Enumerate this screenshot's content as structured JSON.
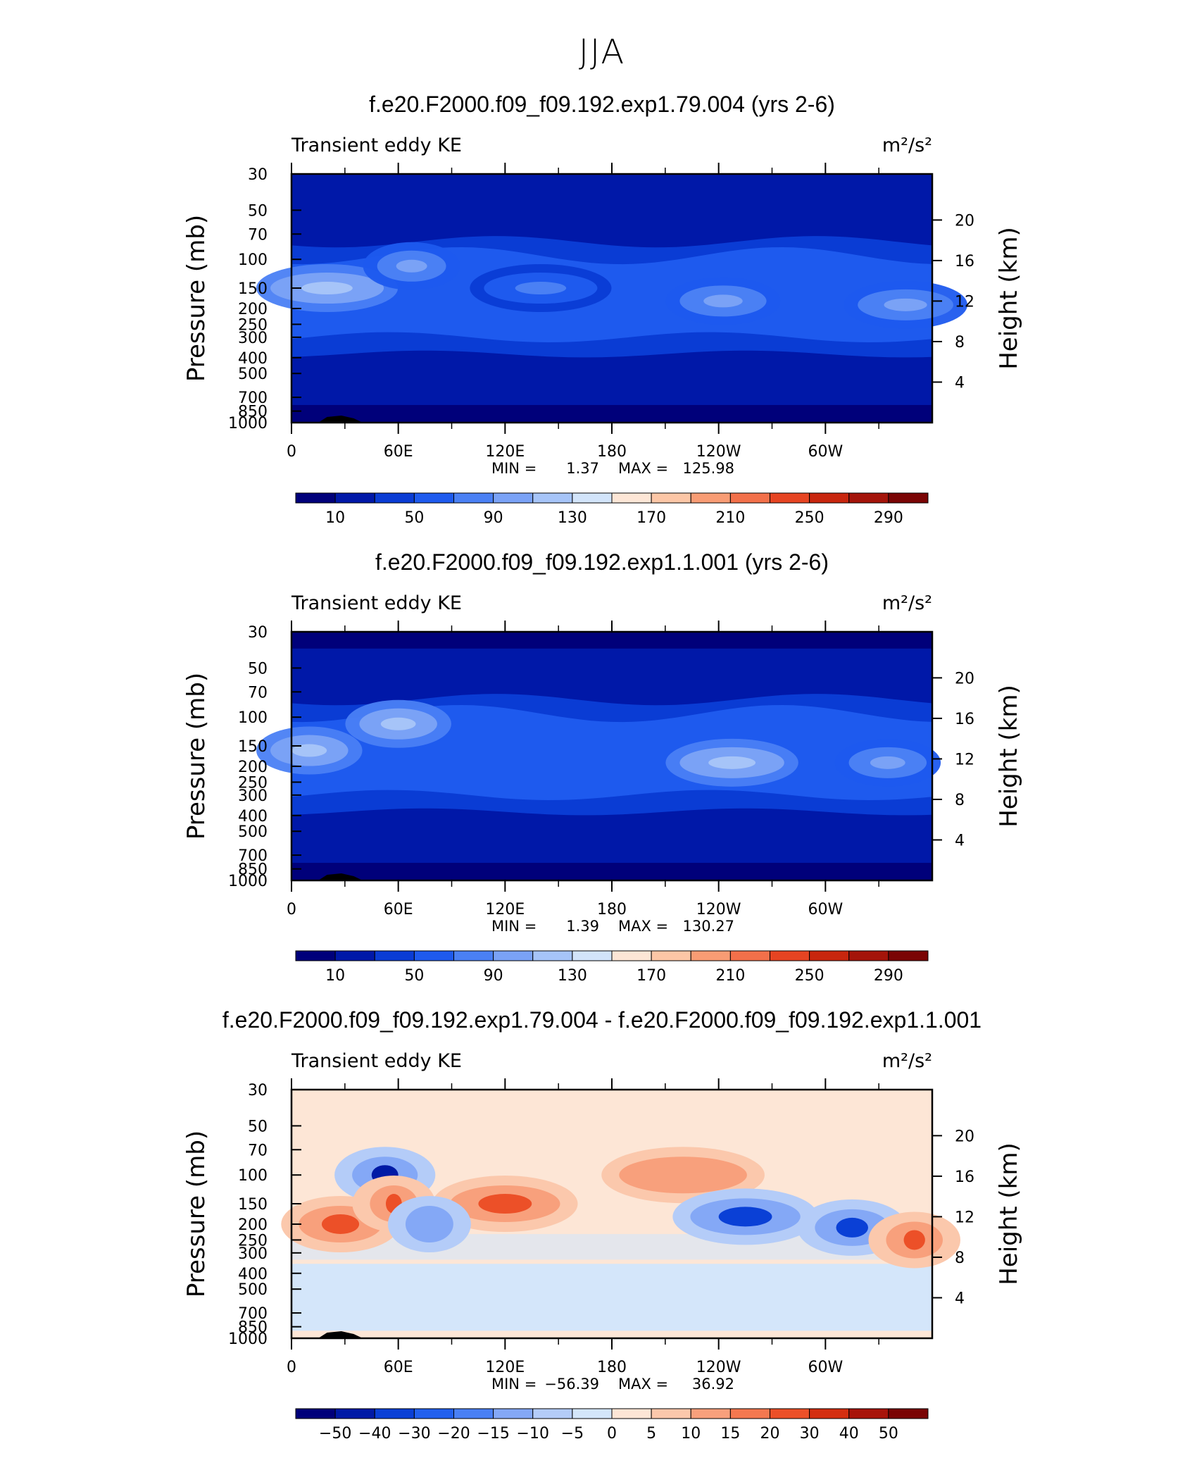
{
  "title": "JJA",
  "panels": [
    {
      "title": "f.e20.F2000.f09_f09.192.exp1.79.004 (yrs 2-6)",
      "left_label": "Transient eddy KE",
      "units": "m²/s²",
      "stats": {
        "min_label": "MIN =",
        "min": "1.37",
        "max_label": "MAX =",
        "max": "125.98"
      },
      "colorbar_labels": [
        "10",
        "50",
        "90",
        "130",
        "170",
        "210",
        "250",
        "290"
      ]
    },
    {
      "title": "f.e20.F2000.f09_f09.192.exp1.1.001 (yrs 2-6)",
      "left_label": "Transient eddy KE",
      "units": "m²/s²",
      "stats": {
        "min_label": "MIN =",
        "min": "1.39",
        "max_label": "MAX =",
        "max": "130.27"
      },
      "colorbar_labels": [
        "10",
        "50",
        "90",
        "130",
        "170",
        "210",
        "250",
        "290"
      ]
    },
    {
      "title": "f.e20.F2000.f09_f09.192.exp1.79.004 - f.e20.F2000.f09_f09.192.exp1.1.001",
      "left_label": "Transient eddy KE",
      "units": "m²/s²",
      "stats": {
        "min_label": "MIN =",
        "min": "−56.39",
        "max_label": "MAX =",
        "max": "36.92"
      },
      "colorbar_labels": [
        "−50",
        "−40",
        "−30",
        "−20",
        "−15",
        "−10",
        "−5",
        "0",
        "5",
        "10",
        "15",
        "20",
        "30",
        "40",
        "50"
      ]
    }
  ],
  "axes": {
    "ylabel": "Pressure (mb)",
    "y2label": "Height (km)",
    "pressure_ticks": [
      "30",
      "50",
      "70",
      "100",
      "150",
      "200",
      "250",
      "300",
      "400",
      "500",
      "700",
      "850",
      "1000"
    ],
    "height_ticks": [
      "20",
      "16",
      "12",
      "8",
      "4"
    ],
    "x_ticks": [
      "0",
      "60E",
      "120E",
      "180",
      "120W",
      "60W"
    ]
  },
  "colors": {
    "abs_scale": [
      "#00007a",
      "#0018a8",
      "#0a3cd4",
      "#1e5aee",
      "#4a80f4",
      "#7aa2f6",
      "#a6c4f8",
      "#d2e4fa",
      "#fde6d6",
      "#fcc6a6",
      "#f89c74",
      "#f2704a",
      "#e64422",
      "#c8260e",
      "#a4140a",
      "#7a0404"
    ],
    "diff_scale": [
      "#00007a",
      "#001aa6",
      "#0a40d6",
      "#2260ee",
      "#4a80f4",
      "#84a8f6",
      "#b4ccf8",
      "#d4e6fa",
      "#fde6d6",
      "#fbc8ac",
      "#f8a07c",
      "#f47850",
      "#ec5028",
      "#d42e10",
      "#a8140a",
      "#7a0404"
    ]
  },
  "chart_data": [
    {
      "type": "heatmap",
      "title": "f.e20.F2000.f09_f09.192.exp1.79.004 (yrs 2-6)",
      "xlabel": "",
      "ylabel": "Pressure (mb)",
      "x": [
        "0",
        "60E",
        "120E",
        "180",
        "120W",
        "60W"
      ],
      "y_pressure_mb": [
        30,
        50,
        70,
        100,
        150,
        200,
        250,
        300,
        400,
        500,
        700,
        850,
        1000
      ],
      "z_min": 1.37,
      "z_max": 125.98,
      "levels": [
        10,
        30,
        50,
        70,
        90,
        110,
        130,
        150,
        170,
        190,
        210,
        230,
        250,
        270,
        290
      ],
      "regions": [
        {
          "lon_range": [
            0,
            40
          ],
          "pressure_mb": 150,
          "value": 90
        },
        {
          "lon_range": [
            60,
            75
          ],
          "pressure_mb": 110,
          "value": 70
        },
        {
          "lon_range": [
            120,
            160
          ],
          "pressure_mb": 150,
          "value": 50
        },
        {
          "lon_range": [
            230,
            255
          ],
          "pressure_mb": 180,
          "value": 70
        },
        {
          "lon_range": [
            330,
            360
          ],
          "pressure_mb": 190,
          "value": 70
        }
      ]
    },
    {
      "type": "heatmap",
      "title": "f.e20.F2000.f09_f09.192.exp1.1.001 (yrs 2-6)",
      "xlabel": "",
      "ylabel": "Pressure (mb)",
      "x": [
        "0",
        "60E",
        "120E",
        "180",
        "120W",
        "60W"
      ],
      "y_pressure_mb": [
        30,
        50,
        70,
        100,
        150,
        200,
        250,
        300,
        400,
        500,
        700,
        850,
        1000
      ],
      "z_min": 1.39,
      "z_max": 130.27,
      "levels": [
        10,
        30,
        50,
        70,
        90,
        110,
        130,
        150,
        170,
        190,
        210,
        230,
        250,
        270,
        290
      ],
      "regions": [
        {
          "lon_range": [
            0,
            20
          ],
          "pressure_mb": 160,
          "value": 90
        },
        {
          "lon_range": [
            50,
            70
          ],
          "pressure_mb": 110,
          "value": 90
        },
        {
          "lon_range": [
            230,
            265
          ],
          "pressure_mb": 190,
          "value": 90
        },
        {
          "lon_range": [
            325,
            345
          ],
          "pressure_mb": 190,
          "value": 70
        }
      ]
    },
    {
      "type": "heatmap",
      "title": "f.e20.F2000.f09_f09.192.exp1.79.004 - f.e20.F2000.f09_f09.192.exp1.1.001",
      "xlabel": "",
      "ylabel": "Pressure (mb)",
      "x": [
        "0",
        "60E",
        "120E",
        "180",
        "120W",
        "60W"
      ],
      "y_pressure_mb": [
        30,
        50,
        70,
        100,
        150,
        200,
        250,
        300,
        400,
        500,
        700,
        850,
        1000
      ],
      "z_min": -56.39,
      "z_max": 36.92,
      "levels": [
        -50,
        -40,
        -30,
        -20,
        -15,
        -10,
        -5,
        0,
        5,
        10,
        15,
        20,
        30,
        40,
        50
      ],
      "regions": [
        {
          "lon_range": [
            40,
            65
          ],
          "pressure_mb": 100,
          "value": -50
        },
        {
          "lon_range": [
            10,
            45
          ],
          "pressure_mb": 200,
          "value": 20
        },
        {
          "lon_range": [
            50,
            65
          ],
          "pressure_mb": 150,
          "value": 20
        },
        {
          "lon_range": [
            95,
            145
          ],
          "pressure_mb": 150,
          "value": 20
        },
        {
          "lon_range": [
            190,
            250
          ],
          "pressure_mb": 100,
          "value": 10
        },
        {
          "lon_range": [
            230,
            280
          ],
          "pressure_mb": 180,
          "value": -40
        },
        {
          "lon_range": [
            300,
            330
          ],
          "pressure_mb": 210,
          "value": -40
        },
        {
          "lon_range": [
            340,
            360
          ],
          "pressure_mb": 250,
          "value": 20
        },
        {
          "lon_range": [
            70,
            85
          ],
          "pressure_mb": 200,
          "value": -15
        }
      ]
    }
  ]
}
